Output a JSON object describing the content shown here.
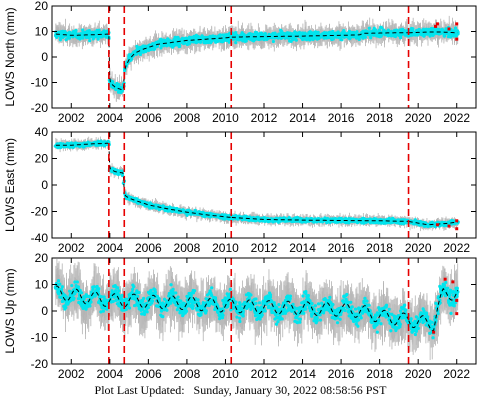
{
  "colors": {
    "error_bars": "#b3b3b3",
    "points": "#00e5ee",
    "model_line": "#000000",
    "event_lines": "#e60000",
    "recent_points": "#e60000"
  },
  "footer": {
    "label": "Plot Last Updated:",
    "timestamp": "Sunday, January 30, 2022 08:58:56 PST"
  },
  "chart_data": [
    {
      "type": "scatter",
      "ylabel": "LOWS North (mm)",
      "xlim": [
        2001.0,
        2023.0
      ],
      "ylim": [
        -20,
        20
      ],
      "xticks": [
        "2002",
        "2004",
        "2006",
        "2008",
        "2010",
        "2012",
        "2014",
        "2016",
        "2018",
        "2020",
        "2022"
      ],
      "yticks": [
        "-20",
        "-10",
        "0",
        "10",
        "20"
      ],
      "grid": false,
      "event_lines_x": [
        2003.95,
        2004.75,
        2010.3,
        2019.5
      ],
      "data_extent_x": [
        2001.2,
        2022.05
      ],
      "series": [
        {
          "x": [
            2001.2,
            2002.0,
            2003.0,
            2003.95,
            2004.0,
            2004.3,
            2004.7,
            2004.75,
            2004.8,
            2005.0,
            2005.3,
            2005.7,
            2006.5,
            2008.0,
            2010.0,
            2010.3,
            2012.0,
            2014.0,
            2016.0,
            2017.0,
            2017.1,
            2019.0,
            2019.5,
            2020.5,
            2021.2,
            2022.0
          ],
          "y": [
            9,
            8.5,
            8.7,
            9,
            -10,
            -12,
            -13,
            -7,
            -4,
            -1,
            1.5,
            3,
            5,
            6.5,
            7.5,
            7.8,
            8,
            8.2,
            8.5,
            8.7,
            9.3,
            9.5,
            9.5,
            9.8,
            9.8,
            9.5
          ],
          "scatter": 2.5,
          "error": 2.5
        }
      ],
      "recent_points": {
        "x": [
          2020.9,
          2021.0,
          2021.6,
          2022.0,
          2022.0
        ],
        "y": [
          12,
          13,
          11,
          7,
          13
        ]
      }
    },
    {
      "type": "scatter",
      "ylabel": "LOWS East (mm)",
      "xlim": [
        2001.0,
        2023.0
      ],
      "ylim": [
        -40,
        40
      ],
      "xticks": [
        "2002",
        "2004",
        "2006",
        "2008",
        "2010",
        "2012",
        "2014",
        "2016",
        "2018",
        "2020",
        "2022"
      ],
      "yticks": [
        "-40",
        "-20",
        "0",
        "20",
        "40"
      ],
      "grid": false,
      "event_lines_x": [
        2003.95,
        2004.75,
        2010.3,
        2019.5
      ],
      "data_extent_x": [
        2001.2,
        2022.05
      ],
      "series": [
        {
          "x": [
            2001.2,
            2002.0,
            2003.0,
            2003.95,
            2004.0,
            2004.3,
            2004.7,
            2004.75,
            2004.8,
            2005.0,
            2005.5,
            2006.0,
            2007.0,
            2008.0,
            2009.0,
            2010.3,
            2012.0,
            2014.0,
            2016.0,
            2018.0,
            2019.5,
            2020.5,
            2021.5,
            2022.0
          ],
          "y": [
            30,
            30,
            31,
            31.5,
            12,
            10,
            9,
            -6,
            -8,
            -10,
            -12.5,
            -15,
            -18,
            -20.5,
            -22.5,
            -24.5,
            -26,
            -26.5,
            -26.8,
            -27,
            -27.5,
            -30,
            -29,
            -28
          ],
          "scatter": 2.5,
          "error": 2.5
        }
      ],
      "recent_points": {
        "x": [
          2021.0,
          2021.6,
          2022.0,
          2022.0
        ],
        "y": [
          -30,
          -31,
          -27,
          -33
        ]
      }
    },
    {
      "type": "scatter",
      "ylabel": "LOWS Up (mm)",
      "xlim": [
        2001.0,
        2023.0
      ],
      "ylim": [
        -20,
        20
      ],
      "xticks": [
        "2002",
        "2004",
        "2006",
        "2008",
        "2010",
        "2012",
        "2014",
        "2016",
        "2018",
        "2020",
        "2022"
      ],
      "yticks": [
        "-20",
        "-10",
        "0",
        "10",
        "20"
      ],
      "grid": false,
      "event_lines_x": [
        2003.95,
        2004.75,
        2010.3,
        2019.5
      ],
      "data_extent_x": [
        2001.2,
        2022.05
      ],
      "series": [
        {
          "x": [
            2001.2,
            2002.0,
            2003.0,
            2004.0,
            2005.0,
            2006.0,
            2008.0,
            2010.0,
            2012.0,
            2014.0,
            2016.0,
            2017.0,
            2018.0,
            2019.0,
            2020.0,
            2020.8,
            2021.0,
            2021.3,
            2022.0
          ],
          "y": [
            7,
            6,
            5,
            4,
            4,
            3.5,
            3,
            2,
            1.5,
            1,
            0.5,
            0,
            -2,
            -3,
            -4,
            -5,
            1,
            6,
            7
          ],
          "scatter": 5,
          "error": 6,
          "seasonal_amplitude": 2.5
        }
      ],
      "recent_points": {
        "x": [
          2020.8,
          2021.4,
          2021.8,
          2022.0,
          2022.0
        ],
        "y": [
          -8,
          12,
          11,
          4,
          -1
        ]
      }
    }
  ]
}
